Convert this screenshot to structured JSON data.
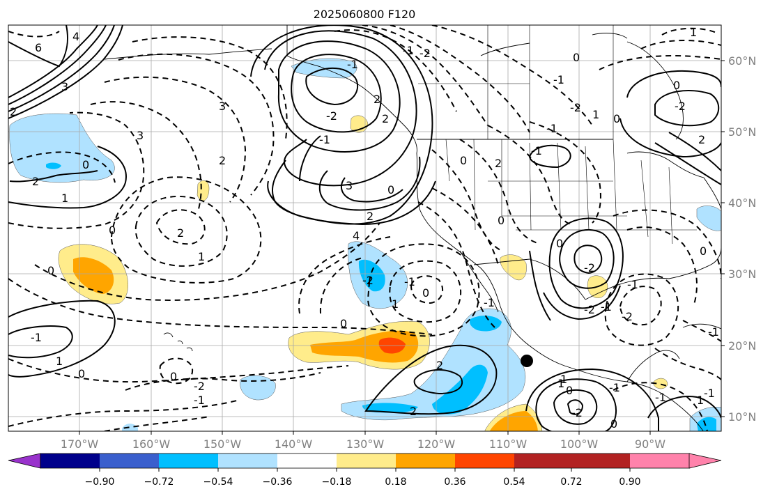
{
  "title": "2025060800 F120",
  "map": {
    "lat_labels": [
      "60°N",
      "50°N",
      "40°N",
      "30°N",
      "20°N",
      "10°N"
    ],
    "lon_labels": [
      "170°W",
      "160°W",
      "150°W",
      "140°W",
      "130°W",
      "120°W",
      "110°W",
      "100°W",
      "90°W"
    ],
    "gridlines": true,
    "contour_labels": [
      "6",
      "4",
      "3",
      "2",
      "3",
      "0",
      "2",
      "1",
      "0",
      "2",
      "2",
      "3",
      "1",
      "0",
      "-1",
      "1",
      "0",
      "0",
      "-2",
      "-1",
      "-2",
      "-1",
      "3",
      "2",
      "4",
      "0",
      "1",
      "2",
      "2",
      "0",
      "-2",
      "-2",
      "-1",
      "-2",
      "1",
      "0",
      "-2",
      "-1",
      "0",
      "-1",
      "0",
      "-1",
      "0",
      "-2",
      "1",
      "2",
      "0",
      "0",
      "2",
      "0",
      "-2",
      "-1",
      "-1",
      "1",
      "0",
      "-2",
      "-1",
      "-1",
      "1",
      "2",
      "2",
      "-1",
      "-1",
      "0",
      "0",
      "-1",
      "-2",
      "1",
      "-1",
      "-1"
    ],
    "marker": "black-dot"
  },
  "colorbar": {
    "tick_labels": [
      "−0.90",
      "−0.72",
      "−0.54",
      "−0.36",
      "−0.18",
      "0.18",
      "0.36",
      "0.54",
      "0.72",
      "0.90"
    ],
    "colors": [
      "#9932cc",
      "#00008b",
      "#3a5fcd",
      "#00bfff",
      "#b0e2ff",
      "#ffffff",
      "#ffec8b",
      "#ffa500",
      "#ff4500",
      "#b22222",
      "#ff82ab"
    ]
  },
  "fill_colors": {
    "light_blue": "#b0e2ff",
    "deep_sky_blue": "#00bfff",
    "light_yellow": "#ffec8b",
    "orange": "#ffa500",
    "orange_red": "#ff4500"
  }
}
